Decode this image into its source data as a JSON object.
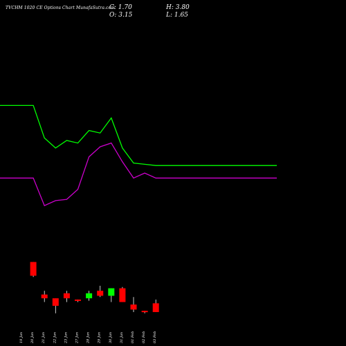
{
  "header": {
    "title": "TVCHM 1020  CE Options  Chart MunafaSutra.com",
    "close": "C: 1.70",
    "open": "O: 3.15",
    "high": "H: 3.80",
    "low": "L: 1.65"
  },
  "chart_data": {
    "type": "candlestick",
    "categories": [
      "19 Jan",
      "20 Jan",
      "21 Jan",
      "22 Jan",
      "23 Jan",
      "27 Jan",
      "28 Jan",
      "29 Jan",
      "30 Jan",
      "31 Jan",
      "01 Feb",
      "02 Feb",
      "03 Feb"
    ],
    "candles": [
      {
        "open": 7.5,
        "high": 7.5,
        "low": 6.3,
        "close": 6.4,
        "color": "#ff0000"
      },
      {
        "open": 4.9,
        "high": 5.2,
        "low": 4.3,
        "close": 4.6,
        "color": "#ff0000"
      },
      {
        "open": 4.6,
        "high": 4.6,
        "low": 3.4,
        "close": 4.0,
        "color": "#ff0000"
      },
      {
        "open": 4.6,
        "high": 5.2,
        "low": 4.3,
        "close": 5.0,
        "color": "#ff0000"
      },
      {
        "open": 4.5,
        "high": 4.5,
        "low": 4.3,
        "close": 4.4,
        "color": "#ff0000"
      },
      {
        "open": 4.6,
        "high": 5.2,
        "low": 4.4,
        "close": 5.0,
        "color": "#00ff00"
      },
      {
        "open": 5.2,
        "high": 5.6,
        "low": 4.7,
        "close": 4.8,
        "color": "#ff0000"
      },
      {
        "open": 4.8,
        "high": 5.4,
        "low": 4.3,
        "close": 5.4,
        "color": "#00ff00"
      },
      {
        "open": 5.4,
        "high": 5.5,
        "low": 4.3,
        "close": 4.3,
        "color": "#ff0000"
      },
      {
        "open": 4.1,
        "high": 4.7,
        "low": 3.5,
        "close": 3.7,
        "color": "#ff0000"
      },
      {
        "open": 3.6,
        "high": 3.6,
        "low": 3.4,
        "close": 3.55,
        "color": "#ff0000"
      },
      {
        "open": 4.2,
        "high": 4.5,
        "low": 3.5,
        "close": 3.5,
        "color": "#ff0000"
      }
    ],
    "candle_start_index": 1,
    "upper_line": {
      "color": "#00ff00",
      "values": [
        20.0,
        20.0,
        17.4,
        16.6,
        17.2,
        17.0,
        18.0,
        17.8,
        19.0,
        16.6,
        15.4,
        15.3,
        15.2
      ]
    },
    "lower_line": {
      "color": "#cc00cc",
      "values": [
        14.2,
        14.2,
        12.0,
        12.4,
        12.5,
        13.3,
        15.9,
        16.7,
        17.0,
        15.5,
        14.2,
        14.6,
        14.2
      ]
    },
    "ylim": [
      3.0,
      24.0
    ],
    "grid": false,
    "legend": "none"
  }
}
